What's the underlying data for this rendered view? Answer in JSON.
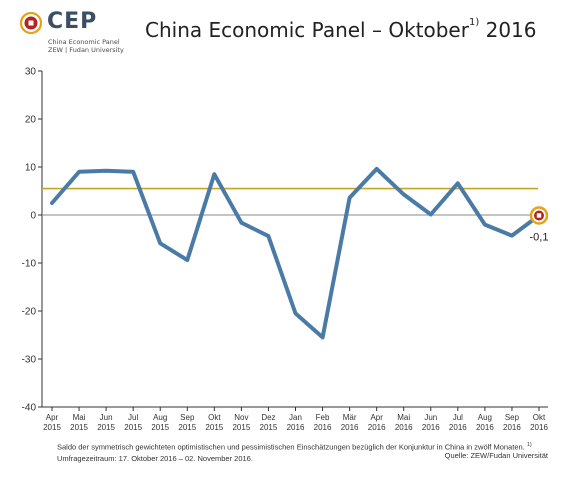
{
  "logo": {
    "wordmark": "CEP",
    "line1": "China Economic Panel",
    "line2": "ZEW | Fudan University"
  },
  "header": {
    "title_main": "China Economic Panel – Oktober",
    "title_sup": "1)",
    "title_year": " 2016"
  },
  "footer": {
    "note_text": "Saldo der symmetrisch gewichteten optimistischen und pessimistischen Einschätzungen bezüglich der Konjunktur in China in zwölf Monaten. ",
    "note_sup": "1)",
    "note_survey": " Umfragezeitraum: 17. Oktober 2016 – 02. November 2016.",
    "source": "Quelle: ZEW/Fudan Universität"
  },
  "colors": {
    "series": "#4a7ba6",
    "average": "#c9a227",
    "zero_line": "#888888",
    "marker_ring": "#b22323"
  },
  "chart_data": {
    "type": "line",
    "categories": [
      [
        "Apr",
        "2015"
      ],
      [
        "Mai",
        "2015"
      ],
      [
        "Jun",
        "2015"
      ],
      [
        "Jul",
        "2015"
      ],
      [
        "Aug",
        "2015"
      ],
      [
        "Sep",
        "2015"
      ],
      [
        "Okt",
        "2015"
      ],
      [
        "Nov",
        "2015"
      ],
      [
        "Dez",
        "2015"
      ],
      [
        "Jan",
        "2016"
      ],
      [
        "Feb",
        "2016"
      ],
      [
        "Mär",
        "2016"
      ],
      [
        "Apr",
        "2016"
      ],
      [
        "Mai",
        "2016"
      ],
      [
        "Jun",
        "2016"
      ],
      [
        "Jul",
        "2016"
      ],
      [
        "Aug",
        "2016"
      ],
      [
        "Sep",
        "2016"
      ],
      [
        "Okt",
        "2016"
      ]
    ],
    "series": [
      {
        "values": [
          2.5,
          9.0,
          9.2,
          9.0,
          -5.9,
          -9.4,
          8.5,
          -1.6,
          -4.4,
          -20.5,
          -25.5,
          3.6,
          9.6,
          4.3,
          0.1,
          6.6,
          -2.0,
          -4.3,
          -0.1
        ]
      }
    ],
    "reference_line": 5.5,
    "last_value_label": "-0,1",
    "ylim": [
      -40,
      30
    ],
    "yticks": [
      30,
      20,
      10,
      0,
      -10,
      -20,
      -30,
      -40
    ],
    "grid": "none",
    "legend": "none"
  }
}
